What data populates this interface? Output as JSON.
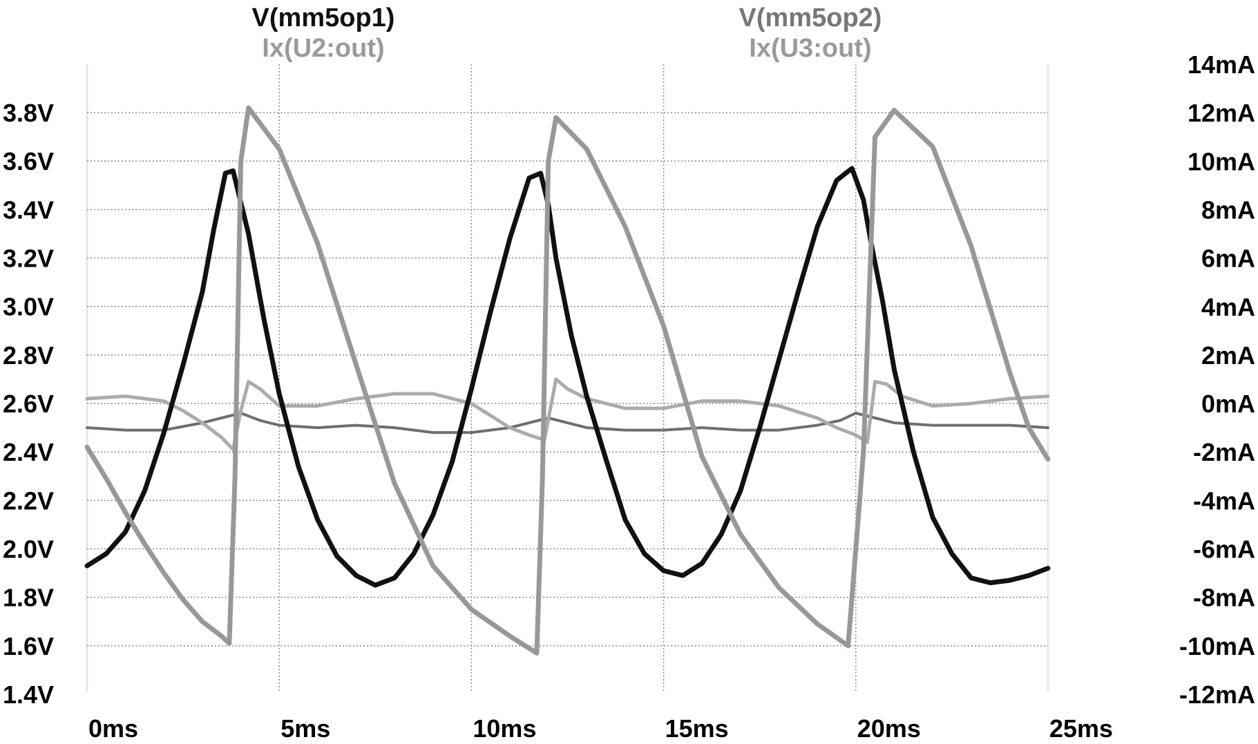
{
  "chart_data": {
    "type": "line",
    "legend": [
      {
        "label": "V(mm5op1)",
        "color": "#111111"
      },
      {
        "label": "Ix(U2:out)",
        "color": "#9a9a9a"
      },
      {
        "label": "V(mm5op2)",
        "color": "#777777"
      },
      {
        "label": "Ix(U3:out)",
        "color": "#9a9a9a"
      }
    ],
    "x_axis": {
      "range": [
        0,
        25
      ],
      "ticks": [
        0,
        5,
        10,
        15,
        20,
        25
      ],
      "tick_labels": [
        "0ms",
        "5ms",
        "10ms",
        "15ms",
        "20ms",
        "25ms"
      ]
    },
    "y_left": {
      "range": [
        1.4,
        3.8
      ],
      "ticks": [
        1.4,
        1.6,
        1.8,
        2.0,
        2.2,
        2.4,
        2.6,
        2.8,
        3.0,
        3.2,
        3.4,
        3.6,
        3.8
      ],
      "tick_labels": [
        "1.4V",
        "1.6V",
        "1.8V",
        "2.0V",
        "2.2V",
        "2.4V",
        "2.6V",
        "2.8V",
        "3.0V",
        "3.2V",
        "3.4V",
        "3.6V",
        "3.8V"
      ]
    },
    "y_right": {
      "range": [
        -12,
        14
      ],
      "ticks": [
        -12,
        -10,
        -8,
        -6,
        -4,
        -2,
        0,
        2,
        4,
        6,
        8,
        10,
        12,
        14
      ],
      "tick_labels": [
        "-12mA",
        "-10mA",
        "-8mA",
        "-6mA",
        "-4mA",
        "-2mA",
        "0mA",
        "2mA",
        "4mA",
        "6mA",
        "8mA",
        "10mA",
        "12mA",
        "14mA"
      ]
    },
    "grid": true,
    "series": [
      {
        "name": "V(mm5op1)",
        "axis": "left",
        "color": "#111111",
        "width": 7,
        "x": [
          0,
          0.5,
          1,
          1.5,
          2,
          2.5,
          3,
          3.3,
          3.6,
          3.8,
          4.2,
          4.6,
          5,
          5.5,
          6,
          6.5,
          7,
          7.5,
          8,
          8.5,
          9,
          9.5,
          10,
          10.5,
          11,
          11.5,
          11.8,
          12,
          12.2,
          12.6,
          13,
          13.5,
          14,
          14.5,
          15,
          15.5,
          16,
          16.5,
          17,
          17.5,
          18,
          18.5,
          19,
          19.5,
          19.9,
          20.2,
          20.4,
          20.7,
          21,
          21.5,
          22,
          22.5,
          23,
          23.5,
          24,
          24.5,
          25
        ],
        "y": [
          1.93,
          1.98,
          2.07,
          2.24,
          2.48,
          2.76,
          3.06,
          3.32,
          3.55,
          3.56,
          3.3,
          2.95,
          2.64,
          2.34,
          2.12,
          1.97,
          1.89,
          1.85,
          1.88,
          1.98,
          2.14,
          2.36,
          2.66,
          2.98,
          3.28,
          3.53,
          3.55,
          3.42,
          3.2,
          2.88,
          2.63,
          2.37,
          2.12,
          1.98,
          1.91,
          1.89,
          1.94,
          2.06,
          2.24,
          2.5,
          2.78,
          3.06,
          3.33,
          3.52,
          3.57,
          3.44,
          3.26,
          3.02,
          2.74,
          2.4,
          2.13,
          1.98,
          1.88,
          1.86,
          1.87,
          1.89,
          1.92
        ]
      },
      {
        "name": "V(mm5op2)",
        "axis": "left",
        "color": "#6e6e6e",
        "width": 4,
        "x": [
          0,
          1,
          2,
          3,
          3.5,
          4,
          4.5,
          5,
          6,
          7,
          8,
          9,
          10,
          11,
          11.5,
          12,
          12.5,
          13,
          14,
          15,
          16,
          17,
          18,
          19,
          19.6,
          20,
          20.5,
          21,
          22,
          23,
          24,
          25
        ],
        "y": [
          2.5,
          2.49,
          2.49,
          2.52,
          2.54,
          2.56,
          2.53,
          2.51,
          2.5,
          2.51,
          2.5,
          2.48,
          2.48,
          2.5,
          2.52,
          2.54,
          2.52,
          2.5,
          2.49,
          2.49,
          2.5,
          2.49,
          2.49,
          2.51,
          2.53,
          2.56,
          2.54,
          2.52,
          2.51,
          2.51,
          2.51,
          2.5
        ]
      },
      {
        "name": "Ix(U2:out)",
        "axis": "right",
        "color": "#989898",
        "width": 7,
        "x": [
          0,
          0.5,
          1,
          1.5,
          2,
          2.5,
          3,
          3.5,
          3.7,
          3.85,
          4,
          4.2,
          5,
          6,
          7,
          8,
          9,
          10,
          11,
          11.7,
          11.85,
          12,
          12.2,
          13,
          14,
          15,
          16,
          17,
          18,
          19,
          19.8,
          20.2,
          20.5,
          21,
          22,
          23,
          24,
          24.5,
          25
        ],
        "y": [
          -1.8,
          -3.1,
          -4.5,
          -5.8,
          -7.0,
          -8.1,
          -9.0,
          -9.6,
          -9.9,
          -3.0,
          10.0,
          12.2,
          10.5,
          6.6,
          1.6,
          -3.3,
          -6.7,
          -8.5,
          -9.6,
          -10.3,
          -3.0,
          10.0,
          11.8,
          10.5,
          7.3,
          3.2,
          -2.2,
          -5.4,
          -7.6,
          -9.1,
          -10.0,
          -2.0,
          11.0,
          12.1,
          10.6,
          6.5,
          1.3,
          -1.0,
          -2.3
        ]
      },
      {
        "name": "Ix(U3:out)",
        "axis": "right",
        "color": "#ababab",
        "width": 5,
        "x": [
          0,
          1,
          2,
          2.5,
          3,
          3.5,
          3.8,
          4,
          4.2,
          4.5,
          5,
          6,
          7,
          8,
          9,
          10,
          10.5,
          11,
          11.5,
          11.9,
          12.2,
          12.5,
          13,
          14,
          15,
          16,
          17,
          18,
          19,
          19.5,
          20,
          20.3,
          20.5,
          20.8,
          21.2,
          22,
          23,
          24,
          25
        ],
        "y": [
          0.2,
          0.3,
          0.1,
          -0.3,
          -0.8,
          -1.4,
          -1.9,
          -0.3,
          0.9,
          0.6,
          -0.1,
          -0.1,
          0.2,
          0.4,
          0.4,
          0.0,
          -0.5,
          -1.0,
          -1.3,
          -1.5,
          1.0,
          0.6,
          0.2,
          -0.2,
          -0.2,
          0.1,
          0.1,
          -0.1,
          -0.6,
          -1.0,
          -1.3,
          -1.6,
          0.9,
          0.8,
          0.3,
          -0.1,
          0.0,
          0.2,
          0.3
        ]
      }
    ]
  }
}
